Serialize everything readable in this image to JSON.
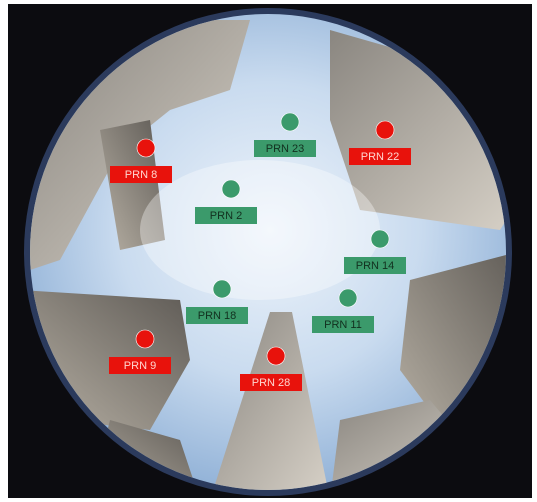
{
  "satellites": [
    {
      "label": "PRN 8",
      "color": "#e8120c"
    },
    {
      "label": "PRN 23",
      "color": "#3b9a6b"
    },
    {
      "label": "PRN 22",
      "color": "#e8120c"
    },
    {
      "label": "PRN 2",
      "color": "#3b9a6b"
    },
    {
      "label": "PRN 14",
      "color": "#3b9a6b"
    },
    {
      "label": "PRN 18",
      "color": "#3b9a6b"
    },
    {
      "label": "PRN 11",
      "color": "#3b9a6b"
    },
    {
      "label": "PRN 9",
      "color": "#e8120c"
    },
    {
      "label": "PRN 28",
      "color": "#e8120c"
    }
  ]
}
